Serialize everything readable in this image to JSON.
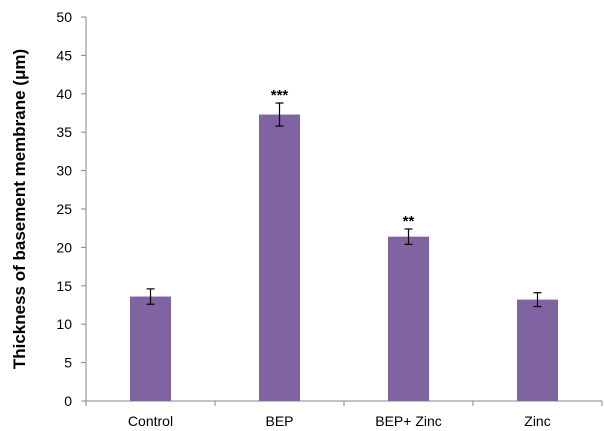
{
  "chart_data": {
    "type": "bar",
    "title": "",
    "xlabel": "",
    "ylabel": "Thickness of basement membrane (μm)",
    "ylim": [
      0,
      50
    ],
    "yticks": [
      0,
      5,
      10,
      15,
      20,
      25,
      30,
      35,
      40,
      45,
      50
    ],
    "categories": [
      "Control",
      "BEP",
      "BEP+ Zinc",
      "Zinc"
    ],
    "values": [
      13.6,
      37.3,
      21.4,
      13.2
    ],
    "errors": [
      1.0,
      1.5,
      1.0,
      0.9
    ],
    "annotations": [
      "",
      "***",
      "**",
      ""
    ],
    "grid": false,
    "legend": "none",
    "colors": {
      "bar": "#8064a2",
      "axis": "#868686",
      "errorbar": "#000000"
    }
  }
}
